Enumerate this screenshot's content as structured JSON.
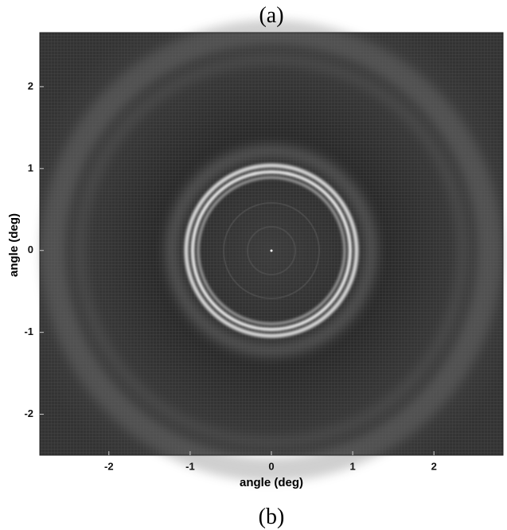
{
  "chart_data": {
    "type": "image",
    "annotations": [
      "(a)",
      "(b)"
    ],
    "xlabel": "angle (deg)",
    "ylabel": "angle (deg)",
    "xlim": [
      -2.85,
      2.85
    ],
    "ylim": [
      -2.5,
      2.66
    ],
    "xticks": [
      -2,
      -1,
      0,
      1,
      2
    ],
    "yticks": [
      -2,
      -1,
      0,
      1,
      2
    ]
  }
}
